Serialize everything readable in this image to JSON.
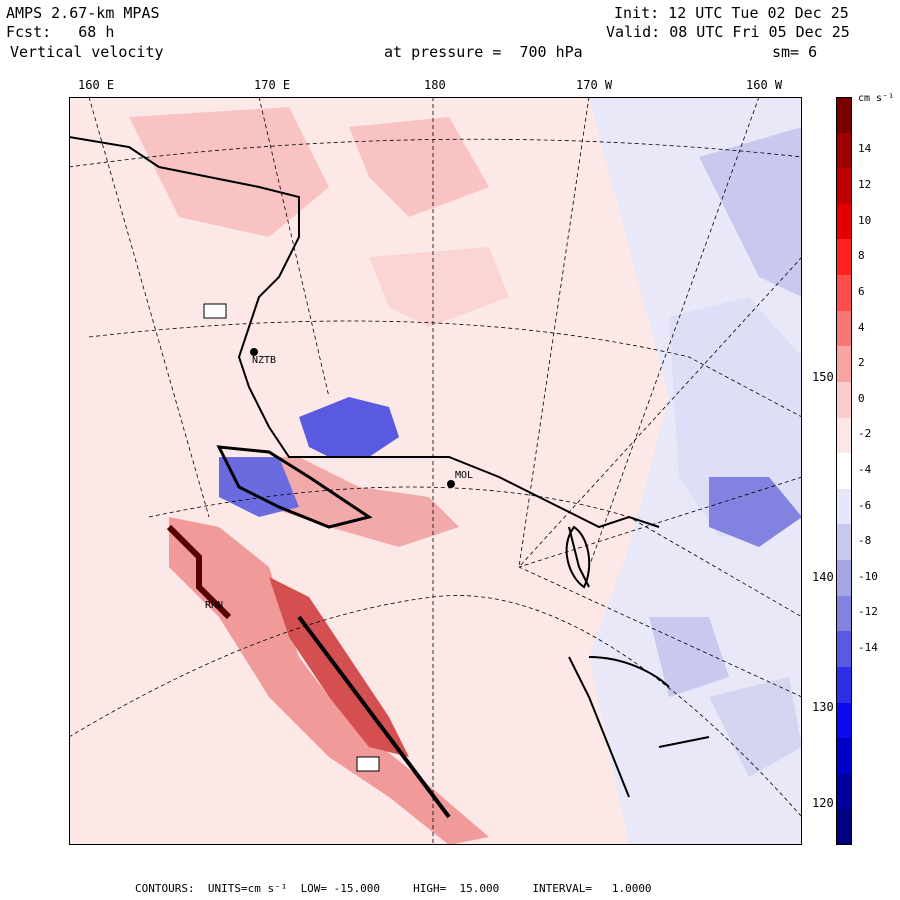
{
  "header": {
    "model": "AMPS 2.67-km MPAS",
    "fcst": "Fcst:   68 h",
    "variable": "Vertical velocity",
    "init": "Init: 12 UTC Tue 02 Dec 25",
    "valid": "Valid: 08 UTC Fri 05 Dec 25",
    "pressure": "at pressure =  700 hPa",
    "smooth": "sm= 6"
  },
  "lon_labels": [
    "160 E",
    "170 E",
    "180",
    "170 W",
    "160 W"
  ],
  "lat_labels": [
    "150 W",
    "140 W",
    "130 W",
    "120 W"
  ],
  "stations": [
    "NZTB",
    "RHN",
    "MOL"
  ],
  "colorbar": {
    "units_label": "cm s⁻¹",
    "ticks": [
      "14",
      "12",
      "10",
      "8",
      "6",
      "4",
      "2",
      "0",
      "-2",
      "-4",
      "-6",
      "-8",
      "-10",
      "-12",
      "-14"
    ],
    "colors": [
      "#7a0000",
      "#9c0000",
      "#c00000",
      "#e40000",
      "#ff2020",
      "#ff4c4c",
      "#f87878",
      "#f9a3a3",
      "#fbcaca",
      "#fde6e6",
      "#ffffff",
      "#e6e6fb",
      "#c9c9f0",
      "#a5a5e6",
      "#8282e0",
      "#5a5ae0",
      "#2f2fe8",
      "#0a0af0",
      "#0000c8",
      "#0000a0",
      "#000080"
    ]
  },
  "footer": "CONTOURS:  UNITS=cm s⁻¹  LOW= -15.000     HIGH=  15.000     INTERVAL=   1.0000"
}
